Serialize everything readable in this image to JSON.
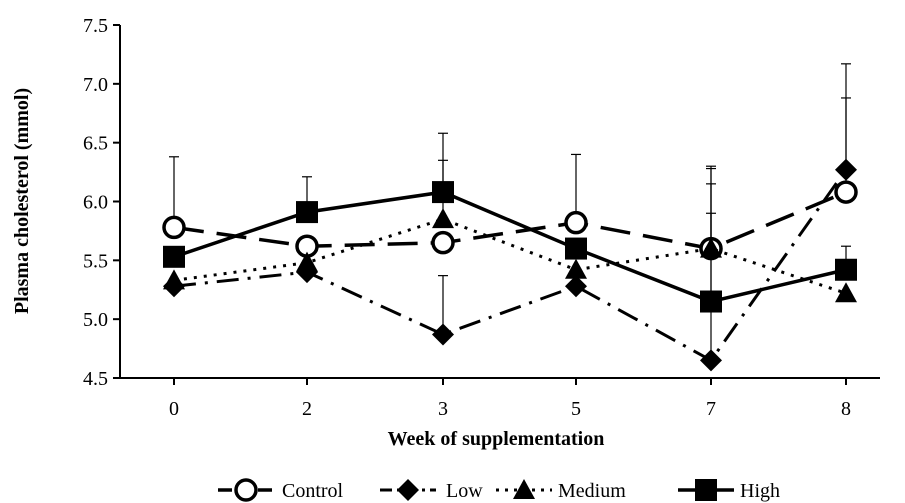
{
  "chart_data": {
    "type": "line",
    "xlabel": "Week of supplementation",
    "ylabel": "Plasma cholesterol (mmol)",
    "categories": [
      "0",
      "2",
      "3",
      "5",
      "7",
      "8"
    ],
    "ylim": [
      4.5,
      7.5
    ],
    "yticks": [
      "4.5",
      "5.0",
      "5.5",
      "6.0",
      "6.5",
      "7.0",
      "7.5"
    ],
    "grid": false,
    "legend_position": "bottom",
    "series": [
      {
        "name": "Control",
        "marker": "circle-open",
        "dash": "long-dash",
        "values": [
          5.78,
          5.62,
          5.65,
          5.82,
          5.6,
          6.08
        ],
        "errors": [
          0.6,
          0.0,
          0.0,
          0.58,
          0.68,
          0.8
        ]
      },
      {
        "name": "Low",
        "marker": "diamond",
        "dash": "dash-dot",
        "values": [
          5.28,
          5.4,
          4.87,
          5.28,
          4.65,
          6.27
        ],
        "errors": [
          0.0,
          0.0,
          0.5,
          0.0,
          1.5,
          0.9
        ]
      },
      {
        "name": "Medium",
        "marker": "triangle",
        "dash": "dotted",
        "values": [
          5.33,
          5.48,
          5.85,
          5.42,
          5.6,
          5.22
        ],
        "errors": [
          0.0,
          0.0,
          0.5,
          0.0,
          0.7,
          0.0
        ]
      },
      {
        "name": "High",
        "marker": "square",
        "dash": "solid",
        "values": [
          5.53,
          5.91,
          6.08,
          5.6,
          5.15,
          5.42
        ],
        "errors": [
          0.0,
          0.3,
          0.5,
          0.0,
          0.75,
          0.2
        ]
      }
    ]
  }
}
